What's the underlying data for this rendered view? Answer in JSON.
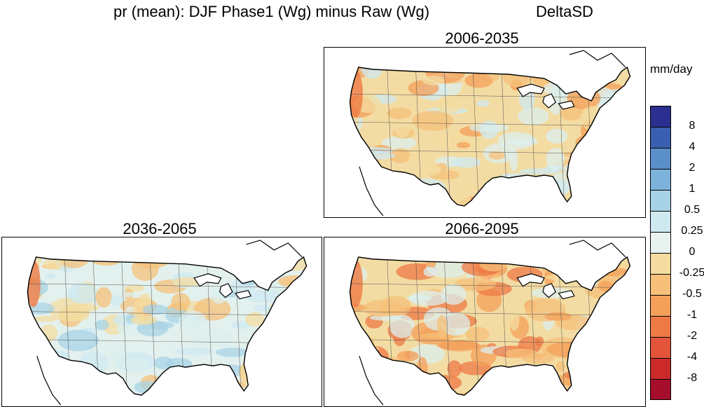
{
  "title": {
    "main": "pr (mean): DJF Phase1 (Wg) minus Raw (Wg)",
    "right": "DeltaSD"
  },
  "panels": [
    {
      "id": "p1",
      "label": "2006-2035",
      "intensity": 0.25
    },
    {
      "id": "p2",
      "label": "2036-2065",
      "intensity": 0.12
    },
    {
      "id": "p3",
      "label": "2066-2095",
      "intensity": 0.6
    }
  ],
  "legend": {
    "units": "mm/day",
    "colors": [
      "#2b2f8f",
      "#3a5fb0",
      "#5b8fc9",
      "#7db3da",
      "#a8d3e6",
      "#cfe9f1",
      "#e8f3f0",
      "#f4dca0",
      "#f6c07a",
      "#f4a05a",
      "#ee7a45",
      "#e2553b",
      "#cc2a2a",
      "#a60f2c"
    ],
    "labels": [
      "8",
      "4",
      "2",
      "1",
      "0.5",
      "0.25",
      "0",
      "-0.25",
      "-0.5",
      "-1",
      "-2",
      "-4",
      "-8"
    ]
  }
}
